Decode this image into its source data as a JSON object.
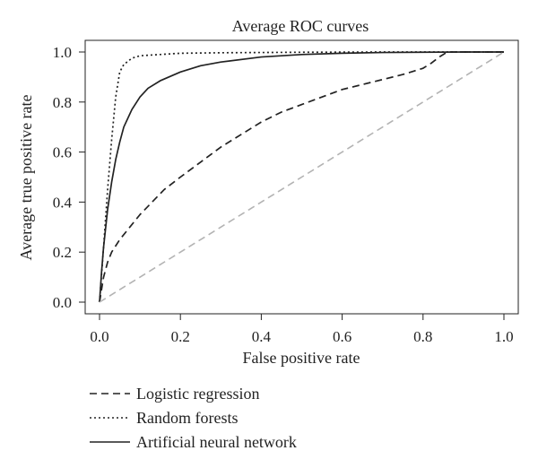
{
  "chart_data": {
    "type": "line",
    "title": "Average ROC curves",
    "xlabel": "False positive rate",
    "ylabel": "Average true positive rate",
    "xlim": [
      0.0,
      1.0
    ],
    "ylim": [
      0.0,
      1.0
    ],
    "xticks": [
      "0.0",
      "0.2",
      "0.4",
      "0.6",
      "0.8",
      "1.0"
    ],
    "yticks": [
      "0.0",
      "0.2",
      "0.4",
      "0.6",
      "0.8",
      "1.0"
    ],
    "grid": false,
    "legend_position": "bottom",
    "series": [
      {
        "name": "Logistic regression",
        "style": "dashed",
        "color": "#222222",
        "x": [
          0.0,
          0.01,
          0.02,
          0.03,
          0.05,
          0.07,
          0.1,
          0.13,
          0.16,
          0.2,
          0.25,
          0.3,
          0.35,
          0.4,
          0.45,
          0.5,
          0.55,
          0.6,
          0.65,
          0.7,
          0.75,
          0.8,
          0.82,
          0.84,
          0.86,
          0.88,
          1.0
        ],
        "y": [
          0.0,
          0.1,
          0.16,
          0.2,
          0.25,
          0.29,
          0.35,
          0.4,
          0.45,
          0.5,
          0.56,
          0.62,
          0.67,
          0.72,
          0.76,
          0.79,
          0.82,
          0.85,
          0.87,
          0.89,
          0.91,
          0.935,
          0.955,
          0.98,
          1.0,
          1.0,
          1.0
        ]
      },
      {
        "name": "Random forests",
        "style": "dotted",
        "color": "#222222",
        "x": [
          0.0,
          0.01,
          0.02,
          0.03,
          0.04,
          0.05,
          0.06,
          0.08,
          0.1,
          0.15,
          0.2,
          0.3,
          0.5,
          0.7,
          1.0
        ],
        "y": [
          0.0,
          0.22,
          0.45,
          0.65,
          0.82,
          0.92,
          0.95,
          0.975,
          0.985,
          0.99,
          0.995,
          0.997,
          0.999,
          1.0,
          1.0
        ]
      },
      {
        "name": "Artificial neural network",
        "style": "solid",
        "color": "#222222",
        "x": [
          0.0,
          0.005,
          0.01,
          0.02,
          0.03,
          0.04,
          0.05,
          0.06,
          0.08,
          0.1,
          0.12,
          0.15,
          0.2,
          0.25,
          0.3,
          0.4,
          0.5,
          0.6,
          0.7,
          0.8,
          0.9,
          1.0
        ],
        "y": [
          0.0,
          0.12,
          0.22,
          0.37,
          0.48,
          0.57,
          0.64,
          0.7,
          0.77,
          0.82,
          0.855,
          0.885,
          0.92,
          0.945,
          0.96,
          0.98,
          0.99,
          0.995,
          0.998,
          0.999,
          1.0,
          1.0
        ]
      },
      {
        "style": "dashed",
        "color": "#b3b3b3",
        "x": [
          0.0,
          1.0
        ],
        "y": [
          0.0,
          1.0
        ]
      }
    ]
  }
}
